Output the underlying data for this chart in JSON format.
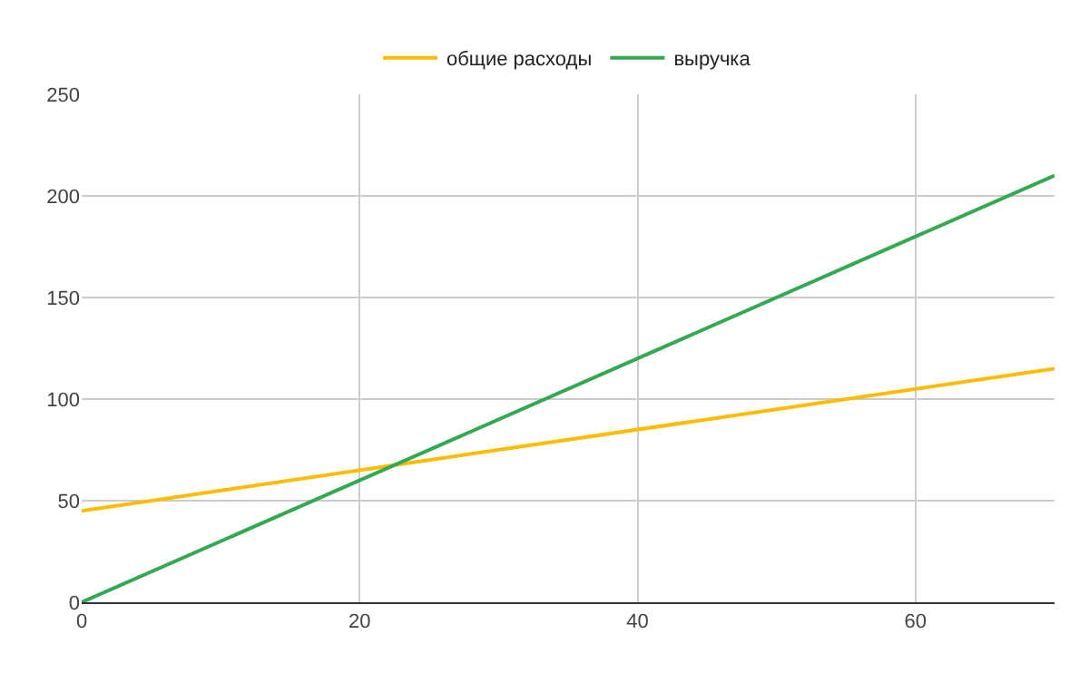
{
  "chart_data": {
    "type": "line",
    "x": [
      0,
      70
    ],
    "series": [
      {
        "name": "общие расходы",
        "color": "#fbbc04",
        "values": [
          45,
          115
        ]
      },
      {
        "name": "выручка",
        "color": "#34a853",
        "values": [
          0,
          210
        ]
      }
    ],
    "xlim": [
      0,
      70
    ],
    "xticks": [
      0,
      20,
      40,
      60
    ],
    "ylim": [
      0,
      250
    ],
    "yticks": [
      0,
      50,
      100,
      150,
      200,
      250
    ],
    "grid": true,
    "legend": "top",
    "marker": "none",
    "line_style": "solid"
  }
}
